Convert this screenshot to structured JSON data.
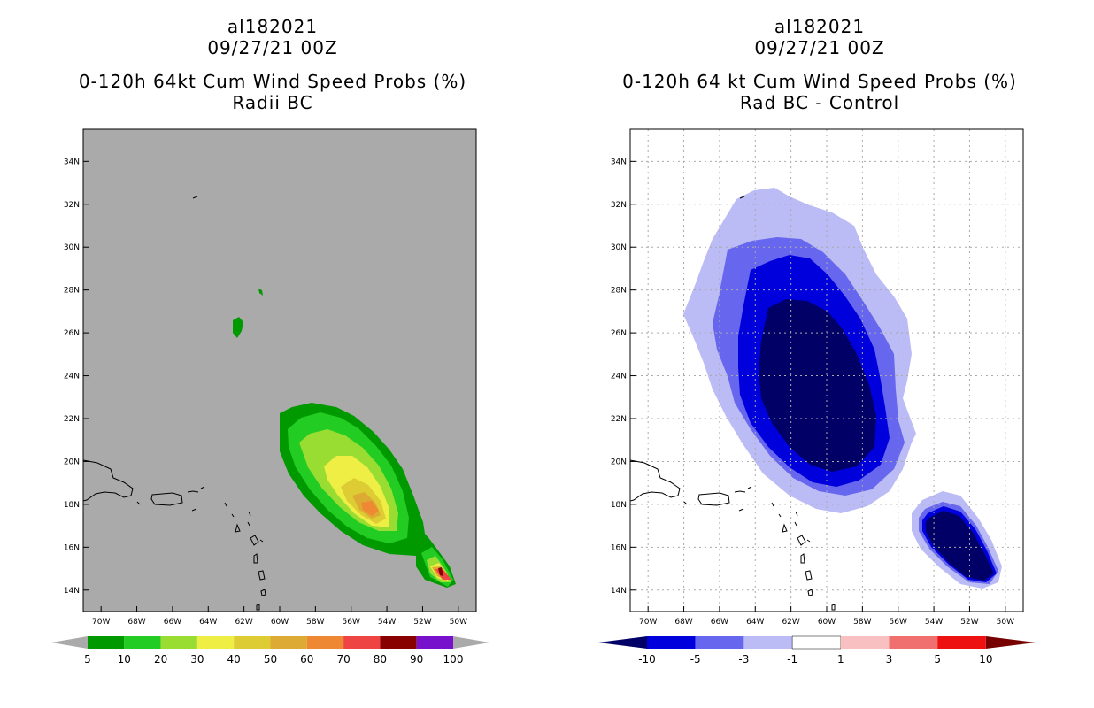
{
  "chart_data": [
    {
      "type": "heatmap",
      "panel": "left",
      "title_lines": [
        "al182021",
        "09/27/21 00Z",
        "0-120h 64kt Cum Wind Speed Probs (%)",
        "Radii BC"
      ],
      "lon_ticks": [
        "70W",
        "68W",
        "66W",
        "64W",
        "62W",
        "60W",
        "58W",
        "56W",
        "54W",
        "52W",
        "50W"
      ],
      "lat_ticks": [
        "14N",
        "16N",
        "18N",
        "20N",
        "22N",
        "24N",
        "26N",
        "28N",
        "30N",
        "32N",
        "34N"
      ],
      "xlim": [
        -71,
        -49
      ],
      "ylim": [
        13,
        35.5
      ],
      "legend_labels": [
        "5",
        "10",
        "20",
        "30",
        "40",
        "50",
        "60",
        "70",
        "80",
        "90",
        "100"
      ],
      "legend_colors": [
        "#009900",
        "#22cc22",
        "#99dd33",
        "#eeee44",
        "#ddcc33",
        "#ddaa33",
        "#ee8833",
        "#ee4444",
        "#880000",
        "#7711cc"
      ],
      "background": "#aaaaaa"
    },
    {
      "type": "heatmap",
      "panel": "right",
      "title_lines": [
        "al182021",
        "09/27/21 00Z",
        "0-120h 64 kt Cum Wind Speed Probs (%)",
        "Rad BC - Control"
      ],
      "lon_ticks": [
        "70W",
        "68W",
        "66W",
        "64W",
        "62W",
        "60W",
        "58W",
        "56W",
        "54W",
        "52W",
        "50W"
      ],
      "lat_ticks": [
        "14N",
        "16N",
        "18N",
        "20N",
        "22N",
        "24N",
        "26N",
        "28N",
        "30N",
        "32N",
        "34N"
      ],
      "xlim": [
        -71,
        -49
      ],
      "ylim": [
        13,
        35.5
      ],
      "legend_labels": [
        "-10",
        "-5",
        "-3",
        "-1",
        "1",
        "3",
        "5",
        "10"
      ],
      "legend_colors": [
        "#0000dd",
        "#6666ee",
        "#bbbbf5",
        "#ffffff",
        "#f8c0c0",
        "#f07070",
        "#ee1111"
      ],
      "legend_end_colors": [
        "#000066",
        "#770000"
      ],
      "background": "#ffffff"
    }
  ]
}
